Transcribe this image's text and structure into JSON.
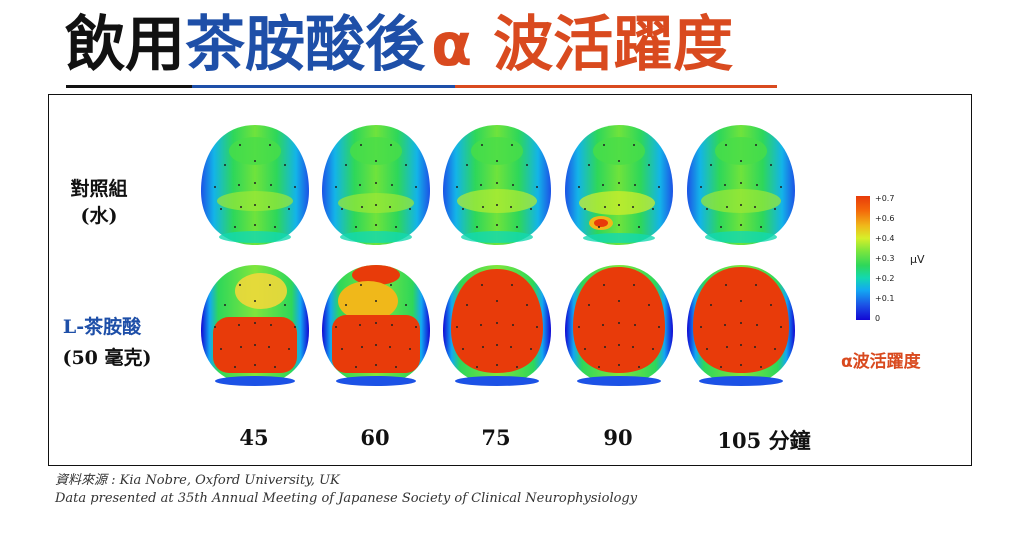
{
  "title": {
    "part1": "飲用",
    "part2": "茶胺酸後",
    "part3": "α 波活躍度"
  },
  "rows": {
    "control_line1": "對照組",
    "control_line2": "(水)",
    "treatment_line1": "L-茶胺酸",
    "treatment_line2": "(50 毫克)"
  },
  "columns": [
    "45",
    "60",
    "75",
    "90",
    "105 分鐘"
  ],
  "colorbar": {
    "ticks": [
      "+0.7",
      "+0.6",
      "+0.4",
      "+0.3",
      "+0.2",
      "+0.1",
      "0"
    ],
    "unit": "μV",
    "label": "α波活躍度",
    "colors": [
      "#1206d4",
      "#1c52e6",
      "#13a8f2",
      "#13d8b0",
      "#2ed75a",
      "#7fe63c",
      "#d6ef2a",
      "#f0b81a",
      "#f46a0a",
      "#e83b0a"
    ]
  },
  "source": {
    "line1": "資料來源 : Kia Nobre, Oxford University, UK",
    "line2": "Data presented at 35th Annual Meeting of Japanese Society of Clinical Neurophysiology"
  }
}
